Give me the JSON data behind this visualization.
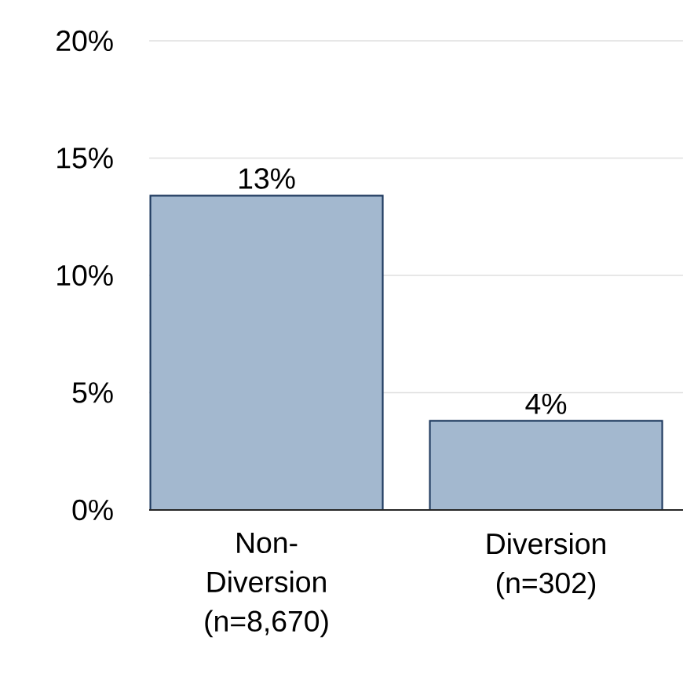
{
  "chart_data": {
    "type": "bar",
    "categories": [
      "Non-Diversion (n=8,670)",
      "Diversion (n=302)"
    ],
    "values": [
      13.4,
      3.8
    ],
    "value_labels": [
      "13%",
      "4%"
    ],
    "color": "#a3b8cf",
    "ylim": [
      0,
      20
    ],
    "yticks": [
      {
        "value": 0,
        "label": "0%"
      },
      {
        "value": 5,
        "label": "5%"
      },
      {
        "value": 10,
        "label": "10%"
      },
      {
        "value": 15,
        "label": "15%"
      },
      {
        "value": 20,
        "label": "20%"
      }
    ],
    "grid": "y"
  }
}
